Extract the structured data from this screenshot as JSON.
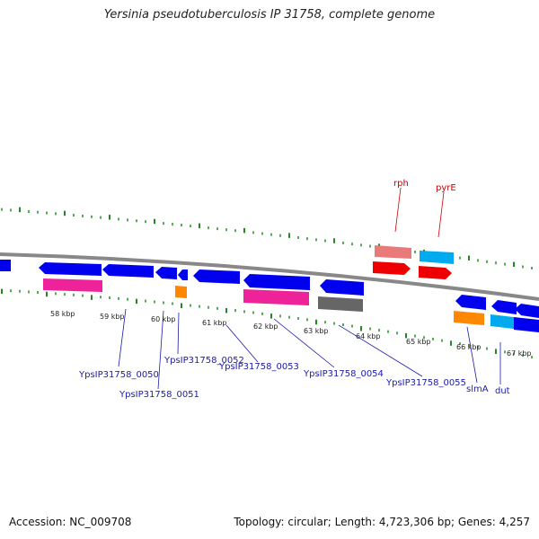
{
  "title": "Yersinia pseudotuberculosis IP 31758, complete genome",
  "footer": {
    "accession": "Accession: NC_009708",
    "summary": "Topology: circular; Length: 4,723,306 bp; Genes: 4,257"
  },
  "scale_labels": [
    "58 kbp",
    "59 kbp",
    "60 kbp",
    "61 kbp",
    "62 kbp",
    "63 kbp",
    "64 kbp",
    "65 kbp",
    "66 kbp",
    "67 kbp"
  ],
  "gene_labels": [
    {
      "text": "YpsIP31758_0050",
      "color": "#1a1aaa"
    },
    {
      "text": "YpsIP31758_0051",
      "color": "#1a1aaa"
    },
    {
      "text": "YpsIP31758_0052",
      "color": "#1a1aaa"
    },
    {
      "text": "YpsIP31758_0053",
      "color": "#1a1aaa"
    },
    {
      "text": "YpsIP31758_0054",
      "color": "#1a1aaa"
    },
    {
      "text": "YpsIP31758_0055",
      "color": "#1a1aaa"
    },
    {
      "text": "slmA",
      "color": "#1a1aaa"
    },
    {
      "text": "dut",
      "color": "#1a1aaa"
    },
    {
      "text": "rph",
      "color": "#cc0000"
    },
    {
      "text": "pyrE",
      "color": "#cc0000"
    }
  ],
  "colors": {
    "backbone": "#888888",
    "forward_cds": "#ee0000",
    "forward_rna": "#e87a7a",
    "reverse_cds": "#0000ee",
    "pink": "#ee2299",
    "orange": "#ff8800",
    "cyan": "#00aaee",
    "grey": "#666666",
    "ticks": "#228822"
  }
}
